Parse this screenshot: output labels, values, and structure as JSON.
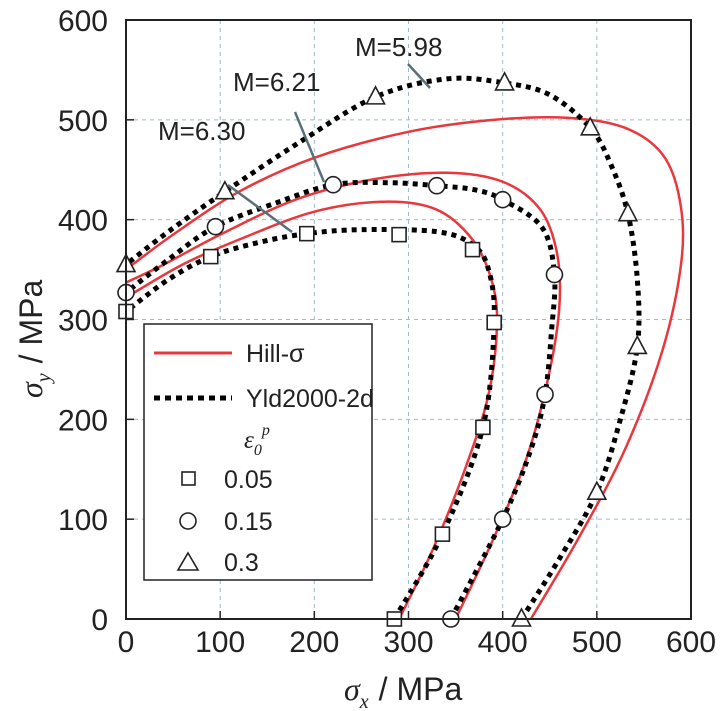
{
  "chart_data": {
    "type": "line",
    "xlabel": {
      "symbol": "σ",
      "subscript": "x",
      "unit": "/ MPa"
    },
    "ylabel": {
      "symbol": "σ",
      "subscript": "y",
      "unit": "/ MPa"
    },
    "xlim": [
      0,
      600
    ],
    "ylim": [
      0,
      600
    ],
    "xticks": [
      0,
      100,
      200,
      300,
      400,
      500,
      600
    ],
    "yticks": [
      0,
      100,
      200,
      300,
      400,
      500,
      600
    ],
    "grid": true,
    "colors": {
      "hill": "#e8383d",
      "yld": "#000000",
      "grid": "#9fbcc8",
      "marker_fill": "#ffffff"
    },
    "legend": {
      "placement": "bottom-left",
      "entries": [
        {
          "label": "Hill-σ",
          "style": "solid-red-line"
        },
        {
          "label": "Yld2000-2d",
          "style": "dotted-black-line"
        }
      ],
      "marker_title": {
        "symbol": "ε",
        "subscript": "0",
        "superscript": "p"
      },
      "marker_entries": [
        {
          "label": "0.05",
          "marker": "square"
        },
        {
          "label": "0.15",
          "marker": "circle"
        },
        {
          "label": "0.3",
          "marker": "triangle"
        }
      ]
    },
    "annotations": [
      {
        "text": "M=6.30",
        "points_to_strain": "0.05"
      },
      {
        "text": "M=6.21",
        "points_to_strain": "0.15"
      },
      {
        "text": "M=5.98",
        "points_to_strain": "0.3"
      }
    ],
    "series": [
      {
        "strain": "0.05",
        "marker": "square",
        "points": [
          [
            0,
            308
          ],
          [
            90,
            363
          ],
          [
            192,
            386
          ],
          [
            290,
            385
          ],
          [
            368,
            370
          ],
          [
            391,
            297
          ],
          [
            379,
            192
          ],
          [
            336,
            85
          ],
          [
            285,
            0
          ]
        ],
        "hill": [
          [
            290,
            0
          ],
          [
            326,
            70
          ],
          [
            360,
            150
          ],
          [
            385,
            225
          ],
          [
            394,
            295
          ],
          [
            388,
            340
          ],
          [
            368,
            380
          ],
          [
            330,
            410
          ],
          [
            275,
            418
          ],
          [
            200,
            408
          ],
          [
            120,
            380
          ],
          [
            60,
            355
          ],
          [
            0,
            322
          ]
        ],
        "yld": [
          [
            285,
            0
          ],
          [
            336,
            85
          ],
          [
            379,
            192
          ],
          [
            391,
            297
          ],
          [
            385,
            350
          ],
          [
            368,
            375
          ],
          [
            330,
            388
          ],
          [
            250,
            390
          ],
          [
            192,
            386
          ],
          [
            140,
            377
          ],
          [
            90,
            363
          ],
          [
            45,
            340
          ],
          [
            0,
            308
          ]
        ]
      },
      {
        "strain": "0.15",
        "marker": "circle",
        "points": [
          [
            0,
            327
          ],
          [
            95,
            393
          ],
          [
            220,
            435
          ],
          [
            330,
            434
          ],
          [
            400,
            420
          ],
          [
            455,
            345
          ],
          [
            445,
            225
          ],
          [
            400,
            100
          ],
          [
            345,
            0
          ]
        ],
        "hill": [
          [
            350,
            0
          ],
          [
            390,
            80
          ],
          [
            425,
            160
          ],
          [
            448,
            240
          ],
          [
            460,
            310
          ],
          [
            458,
            365
          ],
          [
            440,
            410
          ],
          [
            400,
            438
          ],
          [
            340,
            447
          ],
          [
            260,
            440
          ],
          [
            180,
            420
          ],
          [
            100,
            385
          ],
          [
            40,
            355
          ],
          [
            0,
            337
          ]
        ],
        "yld": [
          [
            345,
            0
          ],
          [
            400,
            100
          ],
          [
            430,
            170
          ],
          [
            445,
            225
          ],
          [
            452,
            290
          ],
          [
            455,
            345
          ],
          [
            442,
            392
          ],
          [
            400,
            420
          ],
          [
            370,
            430
          ],
          [
            330,
            434
          ],
          [
            280,
            437
          ],
          [
            220,
            435
          ],
          [
            160,
            417
          ],
          [
            95,
            393
          ],
          [
            45,
            360
          ],
          [
            0,
            327
          ]
        ]
      },
      {
        "strain": "0.3",
        "marker": "triangle",
        "points": [
          [
            0,
            355
          ],
          [
            105,
            428
          ],
          [
            265,
            523
          ],
          [
            402,
            537
          ],
          [
            493,
            492
          ],
          [
            533,
            406
          ],
          [
            543,
            273
          ],
          [
            500,
            127
          ],
          [
            420,
            0
          ]
        ],
        "hill": [
          [
            430,
            0
          ],
          [
            480,
            80
          ],
          [
            530,
            170
          ],
          [
            570,
            270
          ],
          [
            590,
            360
          ],
          [
            588,
            420
          ],
          [
            570,
            465
          ],
          [
            530,
            492
          ],
          [
            470,
            502
          ],
          [
            390,
            500
          ],
          [
            300,
            488
          ],
          [
            200,
            462
          ],
          [
            120,
            428
          ],
          [
            50,
            385
          ],
          [
            0,
            350
          ]
        ],
        "yld": [
          [
            420,
            0
          ],
          [
            460,
            60
          ],
          [
            500,
            127
          ],
          [
            525,
            200
          ],
          [
            543,
            273
          ],
          [
            543,
            340
          ],
          [
            533,
            406
          ],
          [
            515,
            455
          ],
          [
            493,
            492
          ],
          [
            450,
            525
          ],
          [
            402,
            537
          ],
          [
            340,
            541
          ],
          [
            265,
            523
          ],
          [
            185,
            478
          ],
          [
            105,
            428
          ],
          [
            45,
            388
          ],
          [
            0,
            355
          ]
        ]
      }
    ]
  }
}
